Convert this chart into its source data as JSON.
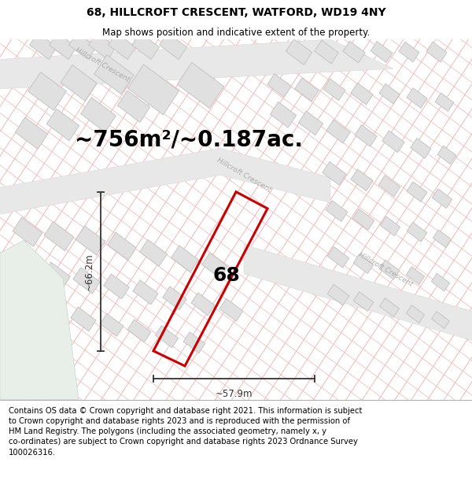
{
  "title": "68, HILLCROFT CRESCENT, WATFORD, WD19 4NY",
  "subtitle": "Map shows position and indicative extent of the property.",
  "area_text": "~756m²/~0.187ac.",
  "height_label": "~66.2m",
  "width_label": "~57.9m",
  "property_number": "68",
  "road_label": "Hillcroft Crescent",
  "footer": "Contains OS data © Crown copyright and database right 2021. This information is subject to Crown copyright and database rights 2023 and is reproduced with the permission of HM Land Registry. The polygons (including the associated geometry, namely x, y co-ordinates) are subject to Crown copyright and database rights 2023 Ordnance Survey 100026316.",
  "map_bg": "#ffffff",
  "hatch_color": "#f0c8c8",
  "plot_line_color": "#f0c0c0",
  "road_fill": "#e8e8e8",
  "road_edge": "#d0d0d0",
  "building_fill": "#e0e0e0",
  "building_edge": "#c0c0c0",
  "property_color": "#cc0000",
  "green_color": "#e8efe8",
  "green_edge": "#c8d8c8",
  "meas_color": "#333333",
  "road_label_color": "#aaaaaa",
  "title_fontsize": 10,
  "subtitle_fontsize": 8.5,
  "area_fontsize": 20,
  "label_fontsize": 8.5,
  "number_fontsize": 18,
  "footer_fontsize": 7.2
}
